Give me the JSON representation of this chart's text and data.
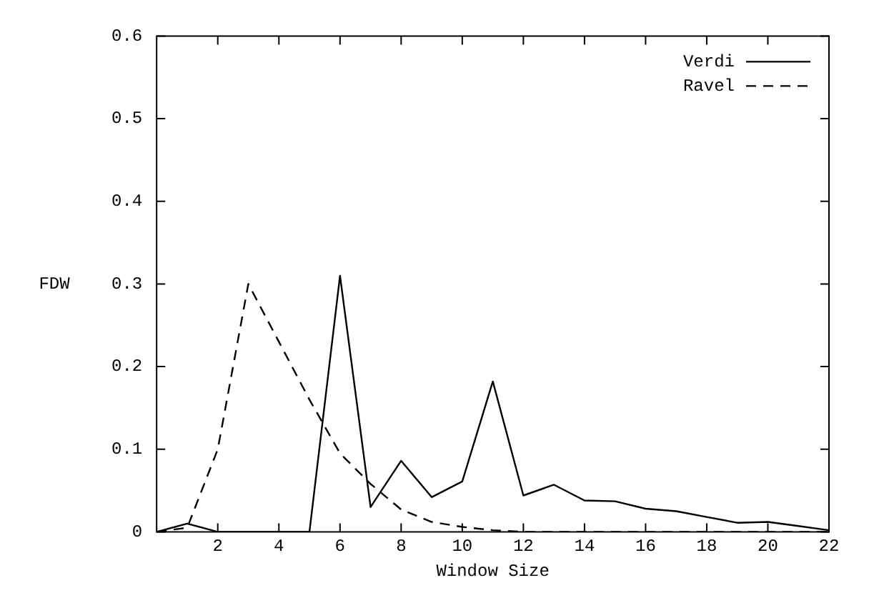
{
  "chart_data": {
    "type": "line",
    "xlabel": "Window Size",
    "ylabel": "FDW",
    "x": [
      0,
      1,
      2,
      3,
      4,
      5,
      6,
      7,
      8,
      9,
      10,
      11,
      12,
      13,
      14,
      15,
      16,
      17,
      18,
      19,
      20,
      21,
      22
    ],
    "series": [
      {
        "name": "Verdi",
        "color": "#000000",
        "line_style": "solid",
        "values": [
          0,
          0.01,
          0,
          0,
          0,
          0,
          0.31,
          0.03,
          0.086,
          0.042,
          0.061,
          0.182,
          0.044,
          0.057,
          0.038,
          0.037,
          0.028,
          0.025,
          0.018,
          0.011,
          0.012,
          0.007,
          0.002
        ]
      },
      {
        "name": "Ravel",
        "color": "#000000",
        "line_style": "dashed",
        "values": [
          0,
          0.005,
          0.1,
          0.3,
          0.23,
          0.16,
          0.095,
          0.058,
          0.027,
          0.012,
          0.006,
          0.002,
          0,
          0,
          0,
          0,
          0,
          0,
          0,
          0,
          0,
          0,
          0
        ]
      }
    ],
    "xlim": [
      0,
      22
    ],
    "xticks": [
      2,
      4,
      6,
      8,
      10,
      12,
      14,
      16,
      18,
      20,
      22
    ],
    "ylim": [
      0,
      0.6
    ],
    "yticks": [
      0,
      0.1,
      0.2,
      0.3,
      0.4,
      0.5,
      0.6
    ],
    "grid": false,
    "legend": "top right",
    "marker": "none"
  }
}
